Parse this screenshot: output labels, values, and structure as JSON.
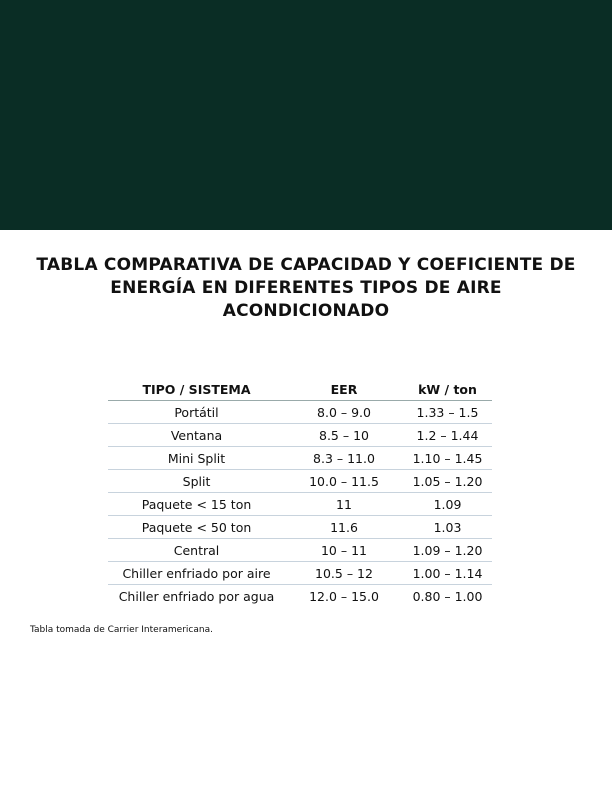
{
  "header": {
    "title": "TABLA COMPARATIVA DE CAPACIDAD Y COEFICIENTE DE ENERGÍA EN DIFERENTES TIPOS DE AIRE ACONDICIONADO"
  },
  "table": {
    "columns": [
      "TIPO / SISTEMA",
      "EER",
      "kW / ton"
    ],
    "rows": [
      [
        "Portátil",
        "8.0 – 9.0",
        "1.33 – 1.5"
      ],
      [
        "Ventana",
        "8.5 – 10",
        "1.2 – 1.44"
      ],
      [
        "Mini Split",
        "8.3 – 11.0",
        "1.10 – 1.45"
      ],
      [
        "Split",
        "10.0 – 11.5",
        "1.05 – 1.20"
      ],
      [
        "Paquete < 15 ton",
        "11",
        "1.09"
      ],
      [
        "Paquete < 50 ton",
        "11.6",
        "1.03"
      ],
      [
        "Central",
        "10 – 11",
        "1.09 – 1.20"
      ],
      [
        "Chiller enfriado por aire",
        "10.5 – 12",
        "1.00 – 1.14"
      ],
      [
        "Chiller enfriado por agua",
        "12.0 – 15.0",
        "0.80 – 1.00"
      ]
    ]
  },
  "footnote": "Tabla tomada de Carrier Interamericana."
}
